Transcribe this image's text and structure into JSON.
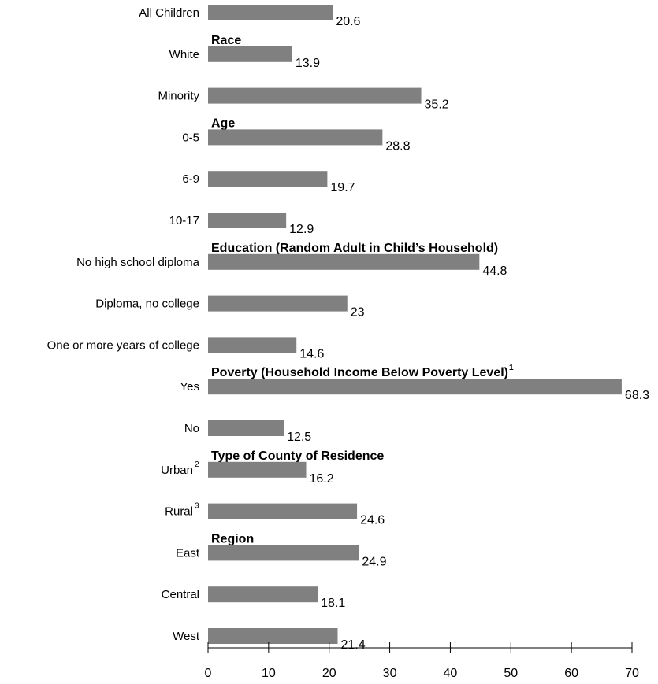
{
  "chart_data": {
    "type": "bar",
    "orientation": "horizontal",
    "bar_color": "#808080",
    "axis_color": "#000000",
    "xlim": [
      0,
      70
    ],
    "x_ticks": [
      0,
      10,
      20,
      30,
      40,
      50,
      60,
      70
    ],
    "grid": false,
    "groups": [
      {
        "label": "Race",
        "superscript": "",
        "before_index": 1
      },
      {
        "label": "Age",
        "superscript": "",
        "before_index": 3
      },
      {
        "label": "Education (Random Adult in Child’s Household)",
        "superscript": "",
        "before_index": 6
      },
      {
        "label": "Poverty (Household Income Below Poverty Level)",
        "superscript": "1",
        "before_index": 9
      },
      {
        "label": "Type of County of Residence",
        "superscript": "",
        "before_index": 11
      },
      {
        "label": "Region",
        "superscript": "",
        "before_index": 13
      }
    ],
    "bars": [
      {
        "category": "All Children",
        "superscript": "",
        "value": 20.6,
        "value_label": "20.6"
      },
      {
        "category": "White",
        "superscript": "",
        "value": 13.9,
        "value_label": "13.9"
      },
      {
        "category": "Minority",
        "superscript": "",
        "value": 35.2,
        "value_label": "35.2"
      },
      {
        "category": "0-5",
        "superscript": "",
        "value": 28.8,
        "value_label": "28.8"
      },
      {
        "category": "6-9",
        "superscript": "",
        "value": 19.7,
        "value_label": "19.7"
      },
      {
        "category": "10-17",
        "superscript": "",
        "value": 12.9,
        "value_label": "12.9"
      },
      {
        "category": "No high school diploma",
        "superscript": "",
        "value": 44.8,
        "value_label": "44.8"
      },
      {
        "category": "Diploma, no college",
        "superscript": "",
        "value": 23,
        "value_label": "23"
      },
      {
        "category": "One or more years of college",
        "superscript": "",
        "value": 14.6,
        "value_label": "14.6"
      },
      {
        "category": "Yes",
        "superscript": "",
        "value": 68.3,
        "value_label": "68.3"
      },
      {
        "category": "No",
        "superscript": "",
        "value": 12.5,
        "value_label": "12.5"
      },
      {
        "category": "Urban",
        "superscript": "2",
        "value": 16.2,
        "value_label": "16.2"
      },
      {
        "category": "Rural",
        "superscript": "3",
        "value": 24.6,
        "value_label": "24.6"
      },
      {
        "category": "East",
        "superscript": "",
        "value": 24.9,
        "value_label": "24.9"
      },
      {
        "category": "Central",
        "superscript": "",
        "value": 18.1,
        "value_label": "18.1"
      },
      {
        "category": "West",
        "superscript": "",
        "value": 21.4,
        "value_label": "21.4"
      }
    ]
  }
}
